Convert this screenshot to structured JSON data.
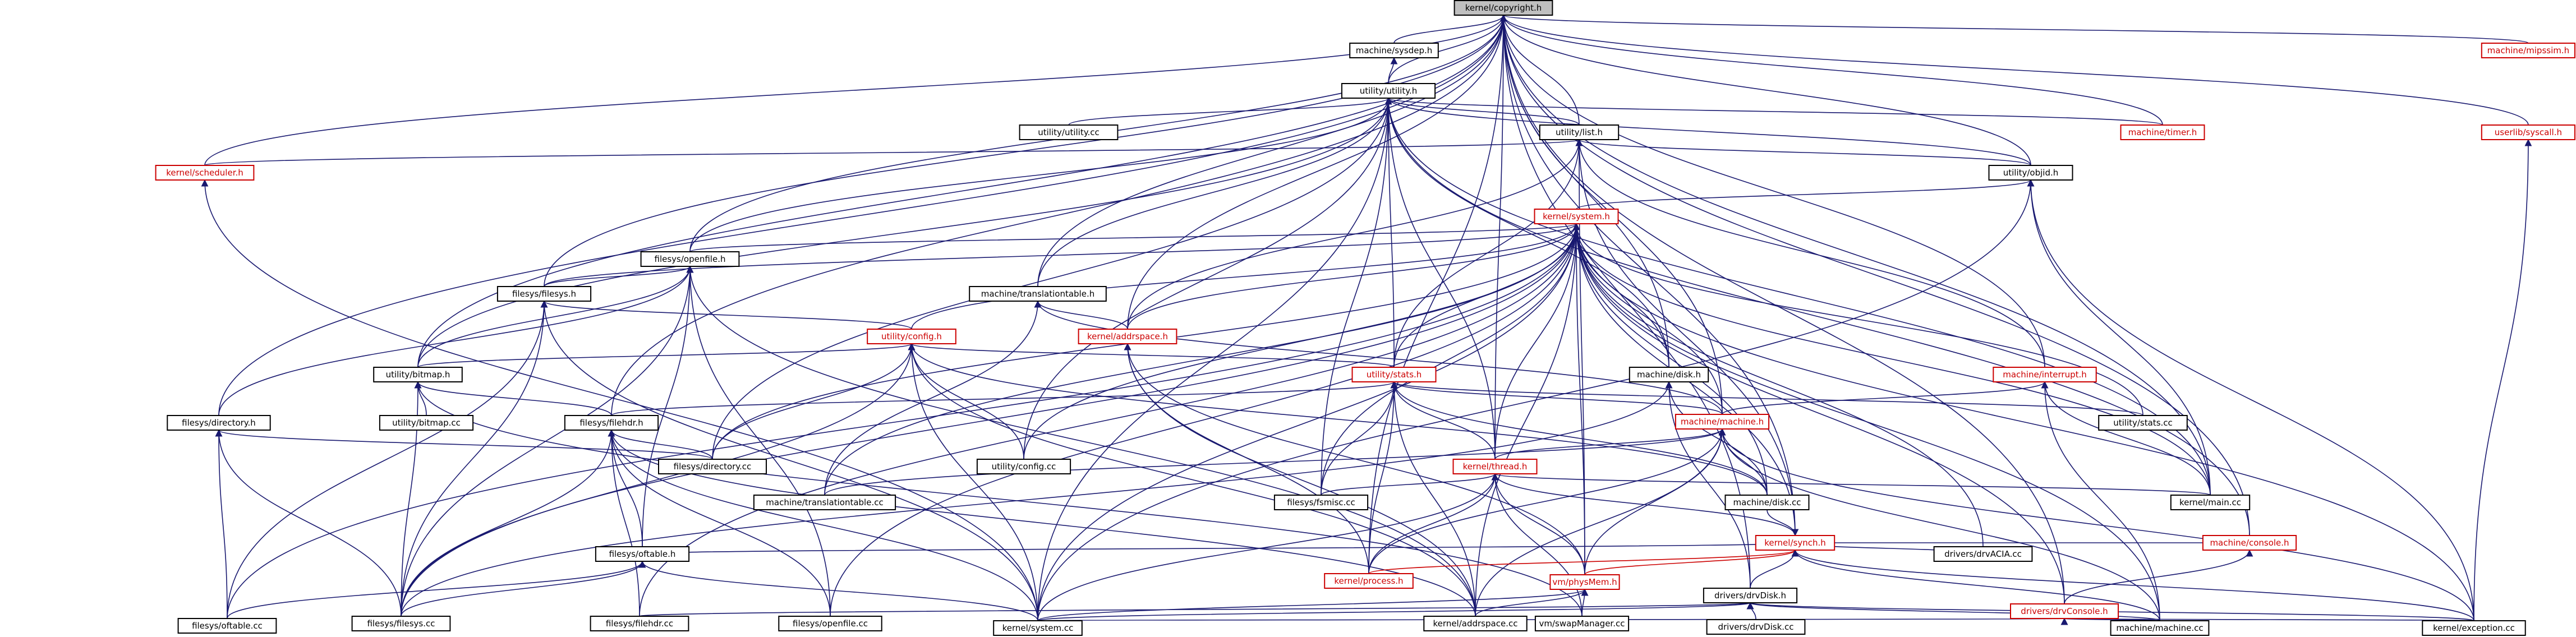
{
  "graph": {
    "root": "kernel/copyright.h",
    "colors": {
      "edge": "#191970",
      "edge_red": "#cc0000",
      "link": "#cc0000",
      "root_fill": "#bfbfbf"
    },
    "nodes": [
      {
        "id": "copyright",
        "label": "kernel/copyright.h",
        "style": "root"
      },
      {
        "id": "sysdep",
        "label": "machine/sysdep.h",
        "style": "normal"
      },
      {
        "id": "mipssim",
        "label": "machine/mipssim.h",
        "style": "red"
      },
      {
        "id": "utility",
        "label": "utility/utility.h",
        "style": "normal"
      },
      {
        "id": "utilitycc",
        "label": "utility/utility.cc",
        "style": "normal"
      },
      {
        "id": "timer",
        "label": "machine/timer.h",
        "style": "red"
      },
      {
        "id": "syscall",
        "label": "userlib/syscall.h",
        "style": "red"
      },
      {
        "id": "scheduler",
        "label": "kernel/scheduler.h",
        "style": "red"
      },
      {
        "id": "list",
        "label": "utility/list.h",
        "style": "normal"
      },
      {
        "id": "object",
        "label": "utility/objid.h",
        "style": "normal"
      },
      {
        "id": "system",
        "label": "kernel/system.h",
        "style": "red"
      },
      {
        "id": "openfile",
        "label": "filesys/openfile.h",
        "style": "normal"
      },
      {
        "id": "filesys",
        "label": "filesys/filesys.h",
        "style": "normal"
      },
      {
        "id": "translate",
        "label": "machine/translationtable.h",
        "style": "normal"
      },
      {
        "id": "addrspace",
        "label": "kernel/addrspace.h",
        "style": "red"
      },
      {
        "id": "config",
        "label": "utility/config.h",
        "style": "red"
      },
      {
        "id": "stats",
        "label": "utility/stats.h",
        "style": "red"
      },
      {
        "id": "disk",
        "label": "machine/disk.h",
        "style": "normal"
      },
      {
        "id": "interrupt",
        "label": "machine/interrupt.h",
        "style": "red"
      },
      {
        "id": "bitmap",
        "label": "utility/bitmap.h",
        "style": "normal"
      },
      {
        "id": "bitmapcc",
        "label": "utility/bitmap.cc",
        "style": "normal"
      },
      {
        "id": "directory",
        "label": "filesys/directory.h",
        "style": "normal"
      },
      {
        "id": "filehdr",
        "label": "filesys/filehdr.h",
        "style": "normal"
      },
      {
        "id": "machine",
        "label": "machine/machine.h",
        "style": "red"
      },
      {
        "id": "statscc",
        "label": "utility/stats.cc",
        "style": "normal"
      },
      {
        "id": "directorycc",
        "label": "filesys/directory.cc",
        "style": "normal"
      },
      {
        "id": "configcc",
        "label": "utility/config.cc",
        "style": "normal"
      },
      {
        "id": "thread",
        "label": "kernel/thread.h",
        "style": "red"
      },
      {
        "id": "translatecc",
        "label": "machine/translationtable.cc",
        "style": "normal"
      },
      {
        "id": "fsmisc",
        "label": "filesys/fsmisc.cc",
        "style": "normal"
      },
      {
        "id": "diskcc",
        "label": "machine/disk.cc",
        "style": "normal"
      },
      {
        "id": "maincc",
        "label": "kernel/main.cc",
        "style": "normal"
      },
      {
        "id": "synch",
        "label": "kernel/synch.h",
        "style": "red"
      },
      {
        "id": "console",
        "label": "machine/console.h",
        "style": "red"
      },
      {
        "id": "oftable",
        "label": "filesys/oftable.h",
        "style": "normal"
      },
      {
        "id": "processcc",
        "label": "kernel/process.h",
        "style": "red"
      },
      {
        "id": "physmem",
        "label": "vm/physMem.h",
        "style": "red"
      },
      {
        "id": "drvaciacc",
        "label": "drivers/drvACIA.cc",
        "style": "normal"
      },
      {
        "id": "drvdisk",
        "label": "drivers/drvDisk.h",
        "style": "normal"
      },
      {
        "id": "drvconsole",
        "label": "drivers/drvConsole.h",
        "style": "red"
      },
      {
        "id": "oftablecc",
        "label": "filesys/oftable.cc",
        "style": "normal"
      },
      {
        "id": "filesyscc",
        "label": "filesys/filesys.cc",
        "style": "normal"
      },
      {
        "id": "filehdrcc",
        "label": "filesys/filehdr.cc",
        "style": "normal"
      },
      {
        "id": "openfilecc",
        "label": "filesys/openfile.cc",
        "style": "normal"
      },
      {
        "id": "addrspacecc",
        "label": "kernel/addrspace.cc",
        "style": "normal"
      },
      {
        "id": "swapcc",
        "label": "vm/swapManager.cc",
        "style": "normal"
      },
      {
        "id": "drvdiskcc",
        "label": "drivers/drvDisk.cc",
        "style": "normal"
      },
      {
        "id": "systemcc",
        "label": "kernel/system.cc",
        "style": "normal"
      },
      {
        "id": "machinecc",
        "label": "machine/machine.cc",
        "style": "normal"
      },
      {
        "id": "exceptioncc",
        "label": "kernel/exception.cc",
        "style": "normal"
      }
    ],
    "edges": [
      [
        "sysdep",
        "copyright"
      ],
      [
        "mipssim",
        "copyright"
      ],
      [
        "utility",
        "copyright"
      ],
      [
        "utility",
        "sysdep"
      ],
      [
        "timer",
        "copyright"
      ],
      [
        "syscall",
        "copyright"
      ],
      [
        "scheduler",
        "copyright"
      ],
      [
        "list",
        "copyright"
      ],
      [
        "object",
        "copyright"
      ],
      [
        "openfile",
        "copyright"
      ],
      [
        "filesys",
        "copyright"
      ],
      [
        "translate",
        "copyright"
      ],
      [
        "addrspace",
        "copyright"
      ],
      [
        "directory",
        "copyright"
      ],
      [
        "bitmap",
        "copyright"
      ],
      [
        "filehdr",
        "copyright"
      ],
      [
        "disk",
        "copyright"
      ],
      [
        "interrupt",
        "copyright"
      ],
      [
        "machine",
        "copyright"
      ],
      [
        "thread",
        "copyright"
      ],
      [
        "synch",
        "copyright"
      ],
      [
        "drvdisk",
        "copyright"
      ],
      [
        "drvconsole",
        "copyright"
      ],
      [
        "console",
        "copyright"
      ],
      [
        "maincc",
        "copyright"
      ],
      [
        "processcc",
        "copyright"
      ],
      [
        "utilitycc",
        "utility"
      ],
      [
        "timer",
        "utility"
      ],
      [
        "list",
        "utility"
      ],
      [
        "object",
        "utility"
      ],
      [
        "openfile",
        "utility"
      ],
      [
        "bitmap",
        "utility"
      ],
      [
        "translate",
        "utility"
      ],
      [
        "stats",
        "utility"
      ],
      [
        "disk",
        "utility"
      ],
      [
        "thread",
        "utility"
      ],
      [
        "configcc",
        "utility"
      ],
      [
        "directorycc",
        "utility"
      ],
      [
        "fsmisc",
        "utility"
      ],
      [
        "maincc",
        "utility"
      ],
      [
        "console",
        "utility"
      ],
      [
        "systemcc",
        "utility"
      ],
      [
        "scheduler",
        "list"
      ],
      [
        "object",
        "list"
      ],
      [
        "addrspace",
        "list"
      ],
      [
        "stats",
        "list"
      ],
      [
        "interrupt",
        "list"
      ],
      [
        "synch",
        "list"
      ],
      [
        "physmem",
        "list"
      ],
      [
        "system",
        "object"
      ],
      [
        "maincc",
        "object"
      ],
      [
        "exceptioncc",
        "object"
      ],
      [
        "systemcc",
        "object"
      ],
      [
        "openfile",
        "system"
      ],
      [
        "filesys",
        "system"
      ],
      [
        "config",
        "system"
      ],
      [
        "addrspace",
        "system"
      ],
      [
        "stats",
        "system"
      ],
      [
        "disk",
        "system"
      ],
      [
        "machine",
        "system"
      ],
      [
        "thread",
        "system"
      ],
      [
        "physmem",
        "system"
      ],
      [
        "synch",
        "system"
      ],
      [
        "statscc",
        "system"
      ],
      [
        "diskcc",
        "system"
      ],
      [
        "maincc",
        "system"
      ],
      [
        "drvaciacc",
        "system"
      ],
      [
        "drvconsole",
        "system"
      ],
      [
        "filesyscc",
        "system"
      ],
      [
        "oftablecc",
        "system"
      ],
      [
        "directorycc",
        "system"
      ],
      [
        "fsmisc",
        "system"
      ],
      [
        "translatecc",
        "system"
      ],
      [
        "addrspacecc",
        "system"
      ],
      [
        "systemcc",
        "system"
      ],
      [
        "machinecc",
        "system"
      ],
      [
        "exceptioncc",
        "system"
      ],
      [
        "filehdrcc",
        "system"
      ],
      [
        "openfilecc",
        "system"
      ],
      [
        "configcc",
        "system"
      ],
      [
        "filesys",
        "openfile"
      ],
      [
        "directory",
        "openfile"
      ],
      [
        "oftable",
        "openfile"
      ],
      [
        "bitmap",
        "openfile"
      ],
      [
        "filesyscc",
        "openfile"
      ],
      [
        "openfilecc",
        "openfile"
      ],
      [
        "addrspacecc",
        "openfile"
      ],
      [
        "config",
        "filesys"
      ],
      [
        "filesyscc",
        "filesys"
      ],
      [
        "oftablecc",
        "filesys"
      ],
      [
        "systemcc",
        "filesys"
      ],
      [
        "addrspace",
        "translate"
      ],
      [
        "machine",
        "translate"
      ],
      [
        "translatecc",
        "translate"
      ],
      [
        "processcc",
        "addrspace"
      ],
      [
        "addrspacecc",
        "addrspace"
      ],
      [
        "physmem",
        "addrspace"
      ],
      [
        "stats",
        "config"
      ],
      [
        "bitmap",
        "config"
      ],
      [
        "configcc",
        "config"
      ],
      [
        "directorycc",
        "config"
      ],
      [
        "filesyscc",
        "config"
      ],
      [
        "diskcc",
        "config"
      ],
      [
        "addrspacecc",
        "config"
      ],
      [
        "systemcc",
        "config"
      ],
      [
        "machine",
        "stats"
      ],
      [
        "thread",
        "stats"
      ],
      [
        "statscc",
        "stats"
      ],
      [
        "fsmisc",
        "stats"
      ],
      [
        "diskcc",
        "stats"
      ],
      [
        "filehdr",
        "stats"
      ],
      [
        "addrspacecc",
        "stats"
      ],
      [
        "processcc",
        "stats"
      ],
      [
        "diskcc",
        "disk"
      ],
      [
        "drvdisk",
        "disk"
      ],
      [
        "filesyscc",
        "disk"
      ],
      [
        "machine",
        "interrupt"
      ],
      [
        "maincc",
        "interrupt"
      ],
      [
        "machinecc",
        "interrupt"
      ],
      [
        "bitmapcc",
        "bitmap"
      ],
      [
        "filehdr",
        "bitmap"
      ],
      [
        "filesyscc",
        "bitmap"
      ],
      [
        "swapcc",
        "bitmap"
      ],
      [
        "directorycc",
        "directory"
      ],
      [
        "filesyscc",
        "directory"
      ],
      [
        "oftablecc",
        "directory"
      ],
      [
        "oftable",
        "filehdr"
      ],
      [
        "filehdrcc",
        "filehdr"
      ],
      [
        "filesyscc",
        "filehdr"
      ],
      [
        "openfilecc",
        "filehdr"
      ],
      [
        "directorycc",
        "filehdr"
      ],
      [
        "addrspacecc",
        "filehdr"
      ],
      [
        "systemcc",
        "filehdr"
      ],
      [
        "thread",
        "machine"
      ],
      [
        "diskcc",
        "machine"
      ],
      [
        "physmem",
        "machine"
      ],
      [
        "addrspacecc",
        "machine"
      ],
      [
        "machinecc",
        "machine"
      ],
      [
        "exceptioncc",
        "machine"
      ],
      [
        "processcc",
        "machine"
      ],
      [
        "translatecc",
        "machine"
      ],
      [
        "synch",
        "thread"
      ],
      [
        "fsmisc",
        "thread"
      ],
      [
        "processcc",
        "thread"
      ],
      [
        "physmem",
        "thread"
      ],
      [
        "swapcc",
        "thread"
      ],
      [
        "systemcc",
        "thread"
      ],
      [
        "maincc",
        "thread"
      ],
      [
        "console",
        "synch"
      ],
      [
        "oftable",
        "synch"
      ],
      [
        "drvdisk",
        "synch"
      ],
      [
        "drvaciacc",
        "synch"
      ],
      [
        "processcc",
        "synch"
      ],
      [
        "physmem",
        "synch"
      ],
      [
        "machinecc",
        "synch"
      ],
      [
        "exceptioncc",
        "synch"
      ],
      [
        "diskcc",
        "synch"
      ],
      [
        "drvconsole",
        "console"
      ],
      [
        "oftablecc",
        "oftable"
      ],
      [
        "filesyscc",
        "oftable"
      ],
      [
        "systemcc",
        "oftable"
      ],
      [
        "addrspacecc",
        "physmem"
      ],
      [
        "swapcc",
        "physmem"
      ],
      [
        "systemcc",
        "physmem"
      ],
      [
        "drvdiskcc",
        "drvdisk"
      ],
      [
        "filehdrcc",
        "drvdisk"
      ],
      [
        "systemcc",
        "drvdisk"
      ],
      [
        "machinecc",
        "drvdisk"
      ],
      [
        "exceptioncc",
        "drvdisk"
      ],
      [
        "systemcc",
        "drvconsole"
      ],
      [
        "machinecc",
        "drvconsole"
      ],
      [
        "exceptioncc",
        "drvconsole"
      ],
      [
        "exceptioncc",
        "syscall"
      ],
      [
        "systemcc",
        "scheduler"
      ]
    ]
  }
}
